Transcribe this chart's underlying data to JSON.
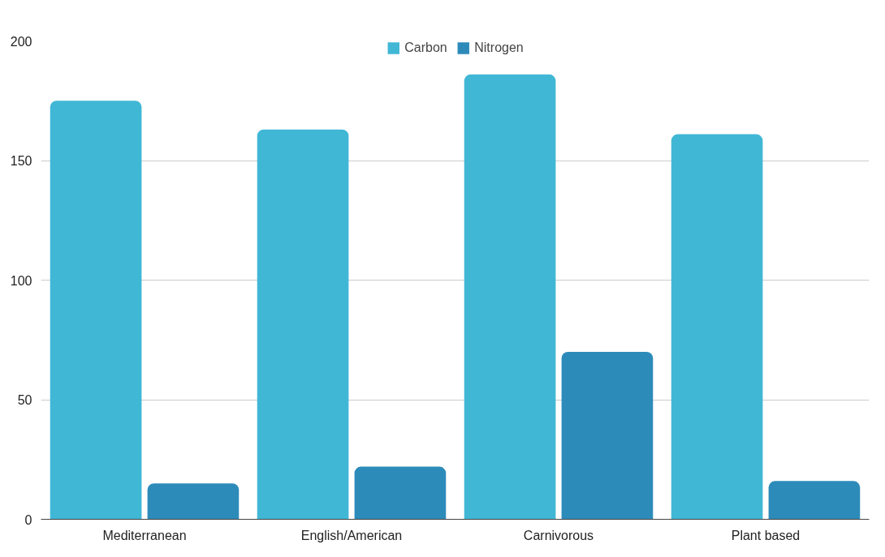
{
  "chart_data": {
    "type": "bar",
    "categories": [
      "Mediterranean",
      "English/American",
      "Carnivorous",
      "Plant based"
    ],
    "series": [
      {
        "name": "Carbon",
        "color": "#41b7d6",
        "values": [
          175,
          163,
          186,
          161
        ]
      },
      {
        "name": "Nitrogen",
        "color": "#2d8bba",
        "values": [
          15,
          22,
          70,
          16
        ]
      }
    ],
    "ylim": [
      0,
      200
    ],
    "yticks": [
      0,
      50,
      100,
      150,
      200
    ],
    "grid": "y",
    "legend": "top"
  }
}
